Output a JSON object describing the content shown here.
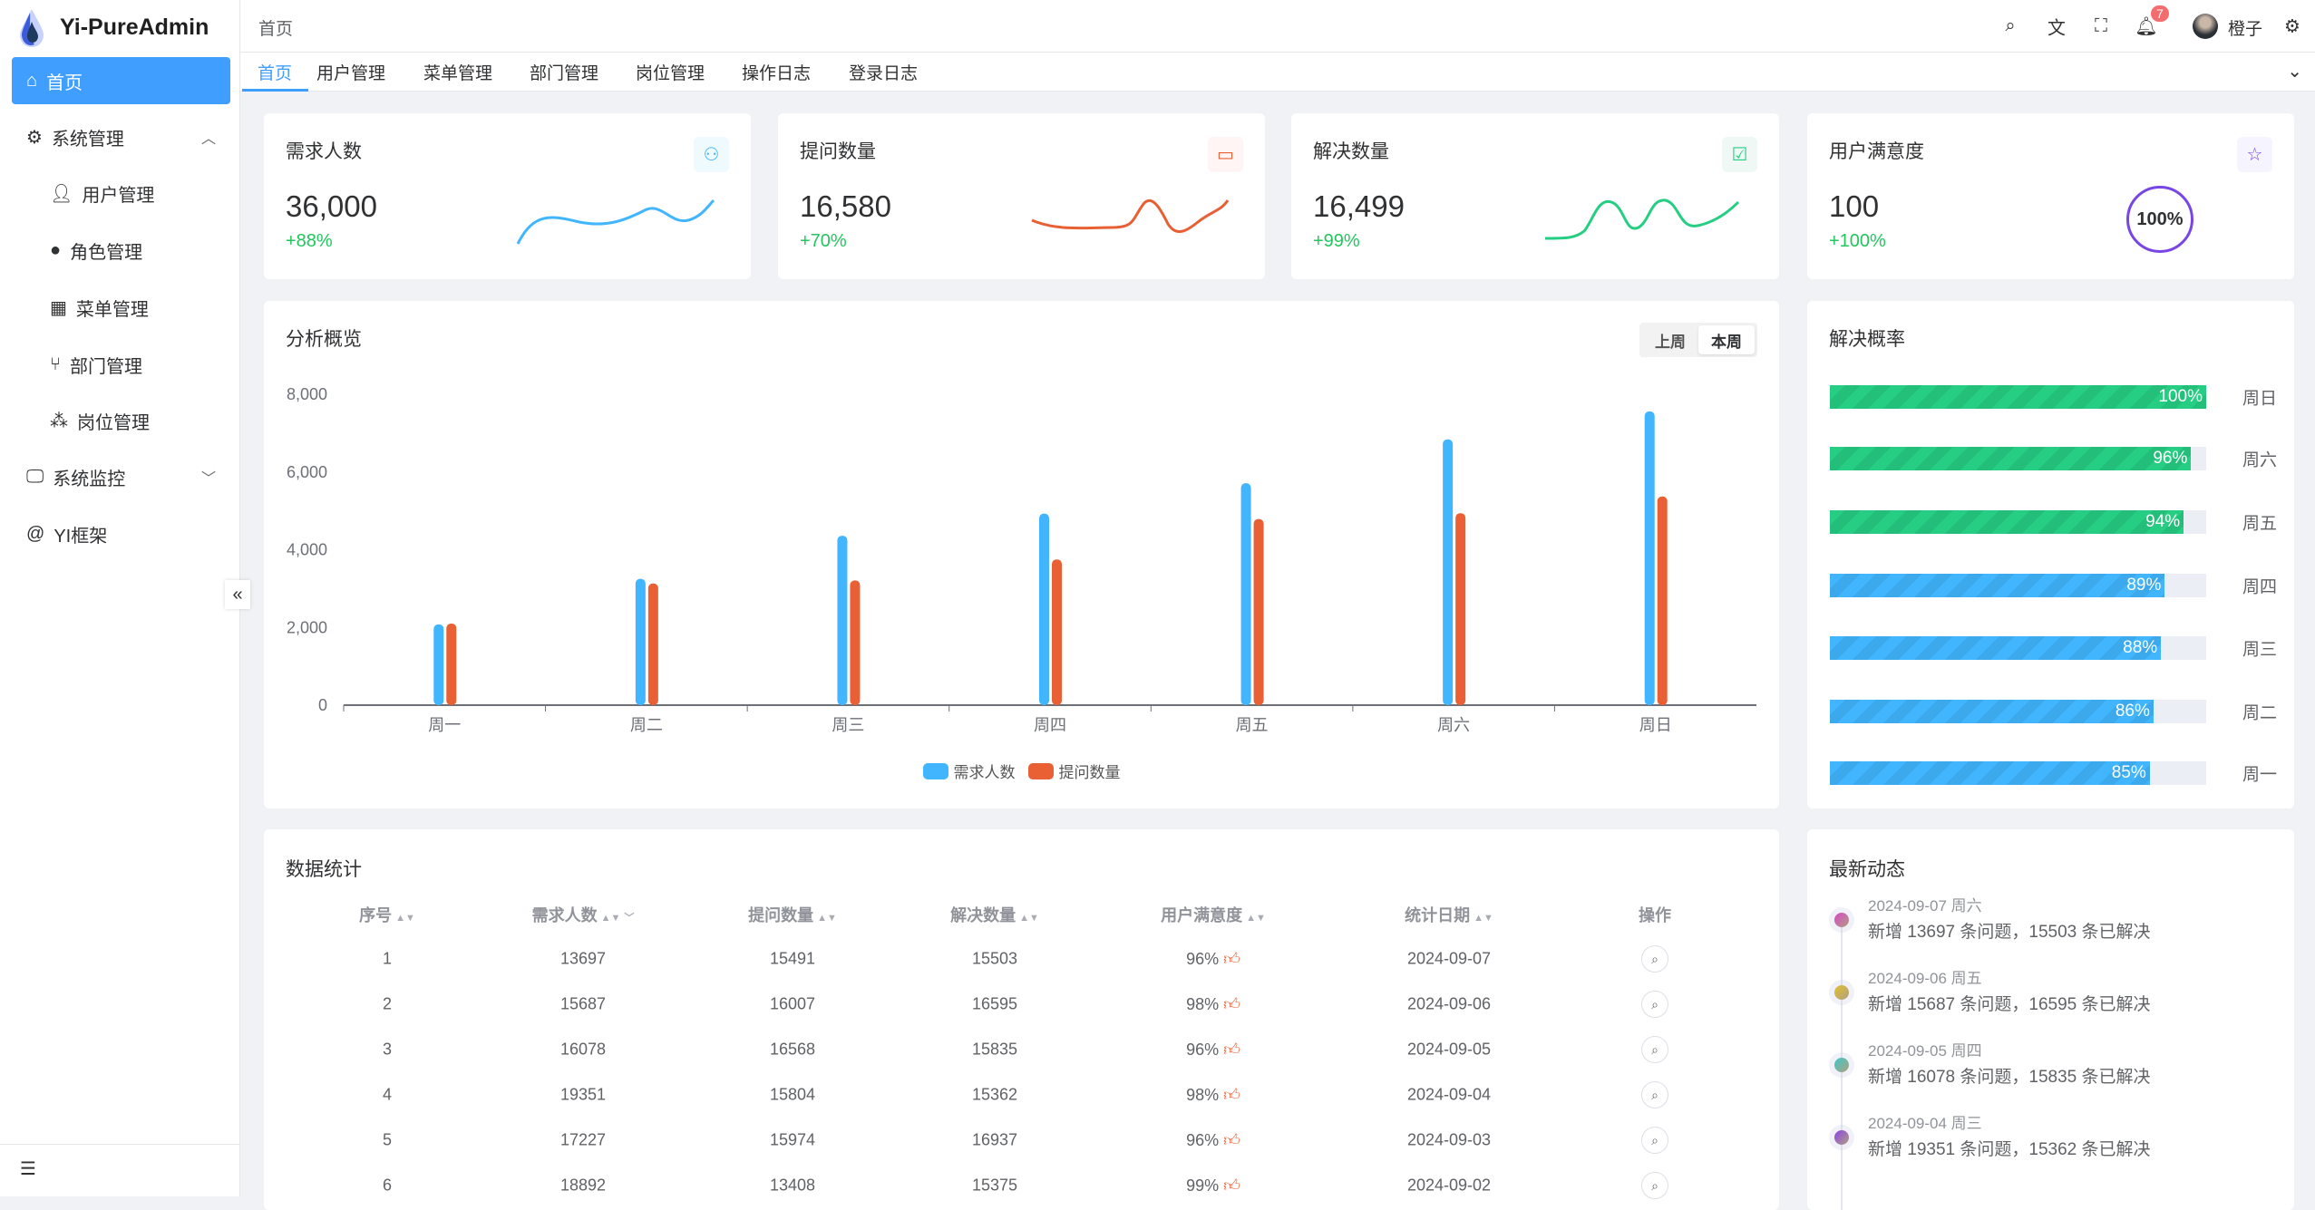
{
  "app": {
    "title": "Yi-PureAdmin"
  },
  "sidebar": {
    "items": [
      {
        "label": "首页",
        "icon": "home-icon",
        "active": true
      },
      {
        "label": "系统管理",
        "icon": "gear-icon",
        "expanded": true
      },
      {
        "label": "用户管理",
        "icon": "user-icon",
        "sub": true
      },
      {
        "label": "角色管理",
        "icon": "role-icon",
        "sub": true
      },
      {
        "label": "菜单管理",
        "icon": "menu-grid-icon",
        "sub": true
      },
      {
        "label": "部门管理",
        "icon": "branch-icon",
        "sub": true
      },
      {
        "label": "岗位管理",
        "icon": "org-icon",
        "sub": true
      },
      {
        "label": "系统监控",
        "icon": "monitor-icon",
        "expanded": false
      },
      {
        "label": "YI框架",
        "icon": "at-icon"
      }
    ]
  },
  "header": {
    "breadcrumb": "首页",
    "notification_count": "7",
    "username": "橙子"
  },
  "tabs": [
    "首页",
    "用户管理",
    "菜单管理",
    "部门管理",
    "岗位管理",
    "操作日志",
    "登录日志"
  ],
  "stats": [
    {
      "title": "需求人数",
      "value": "36,000",
      "change": "+88%",
      "color": "#41b6ff"
    },
    {
      "title": "提问数量",
      "value": "16,580",
      "change": "+70%",
      "color": "#e85f33"
    },
    {
      "title": "解决数量",
      "value": "16,499",
      "change": "+99%",
      "color": "#26ce83"
    },
    {
      "title": "用户满意度",
      "value": "100",
      "change": "+100%",
      "color": "#7846e5",
      "gauge": "100%"
    }
  ],
  "overview": {
    "title": "分析概览",
    "toggle": [
      "上周",
      "本周"
    ],
    "selected": "本周"
  },
  "chart_data": {
    "type": "bar",
    "categories": [
      "周一",
      "周二",
      "周三",
      "周四",
      "周五",
      "周六",
      "周日"
    ],
    "series": [
      {
        "name": "需求人数",
        "color": "#41b6ff",
        "values": [
          2080,
          3250,
          4360,
          4930,
          5710,
          6840,
          7560
        ]
      },
      {
        "name": "提问数量",
        "color": "#e86033",
        "values": [
          2100,
          3130,
          3210,
          3750,
          4790,
          4940,
          5370
        ]
      }
    ],
    "yticks": [
      "0",
      "2,000",
      "4,000",
      "6,000",
      "8,000"
    ],
    "ylim": [
      0,
      8000
    ],
    "legend": "bottom-center"
  },
  "rates": {
    "title": "解决概率",
    "items": [
      {
        "day": "周日",
        "value": 100,
        "label": "100%",
        "color": "#26ce83"
      },
      {
        "day": "周六",
        "value": 96,
        "label": "96%",
        "color": "#26ce83"
      },
      {
        "day": "周五",
        "value": 94,
        "label": "94%",
        "color": "#26ce83"
      },
      {
        "day": "周四",
        "value": 89,
        "label": "89%",
        "color": "#41b6ff"
      },
      {
        "day": "周三",
        "value": 88,
        "label": "88%",
        "color": "#41b6ff"
      },
      {
        "day": "周二",
        "value": 86,
        "label": "86%",
        "color": "#41b6ff"
      },
      {
        "day": "周一",
        "value": 85,
        "label": "85%",
        "color": "#41b6ff"
      }
    ]
  },
  "table": {
    "title": "数据统计",
    "headers": [
      "序号",
      "需求人数",
      "提问数量",
      "解决数量",
      "用户满意度",
      "统计日期",
      "操作"
    ],
    "rows": [
      [
        "1",
        "13697",
        "15491",
        "15503",
        "96%",
        "2024-09-07"
      ],
      [
        "2",
        "15687",
        "16007",
        "16595",
        "98%",
        "2024-09-06"
      ],
      [
        "3",
        "16078",
        "16568",
        "15835",
        "96%",
        "2024-09-05"
      ],
      [
        "4",
        "19351",
        "15804",
        "15362",
        "98%",
        "2024-09-04"
      ],
      [
        "5",
        "17227",
        "15974",
        "16937",
        "96%",
        "2024-09-03"
      ],
      [
        "6",
        "18892",
        "13408",
        "15375",
        "99%",
        "2024-09-02"
      ]
    ]
  },
  "timeline": {
    "title": "最新动态",
    "items": [
      {
        "date": "2024-09-07 周六",
        "text": "新增 13697 条问题，15503 条已解决",
        "color": "#d946c8"
      },
      {
        "date": "2024-09-06 周五",
        "text": "新增 15687 条问题，16595 条已解决",
        "color": "#e0c030"
      },
      {
        "date": "2024-09-05 周四",
        "text": "新增 16078 条问题，15835 条已解决",
        "color": "#3cc9c9"
      },
      {
        "date": "2024-09-04 周三",
        "text": "新增 19351 条问题，15362 条已解决",
        "color": "#8b45e6"
      }
    ]
  }
}
